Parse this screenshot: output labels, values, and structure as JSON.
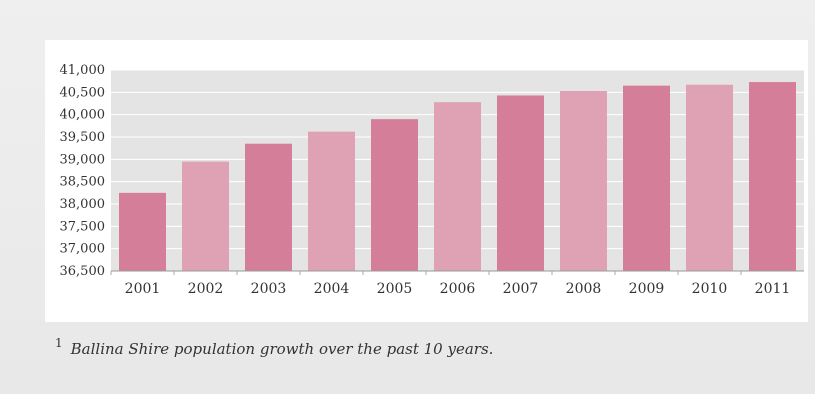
{
  "chart_data": {
    "type": "bar",
    "categories": [
      "2001",
      "2002",
      "2003",
      "2004",
      "2005",
      "2006",
      "2007",
      "2008",
      "2009",
      "2010",
      "2011"
    ],
    "values": [
      38250,
      38950,
      39350,
      39620,
      39900,
      40280,
      40430,
      40530,
      40650,
      40670,
      40730
    ],
    "title": "",
    "xlabel": "",
    "ylabel": "",
    "ylim": [
      36500,
      41000
    ],
    "yticks": [
      36500,
      37000,
      37500,
      38000,
      38500,
      39000,
      39500,
      40000,
      40500,
      41000
    ],
    "ytick_labels": [
      "36,500",
      "37,000",
      "37,500",
      "38,000",
      "38,500",
      "39,000",
      "39,500",
      "40,000",
      "40,500",
      "41,000"
    ],
    "grid": true,
    "colors": {
      "bar_dark": "#d47e9a",
      "bar_light": "#dea2b4",
      "plot_bg": "#e4e4e4",
      "grid": "#ffffff"
    }
  },
  "caption": {
    "number": "1",
    "text": "Ballina Shire population growth over the past 10 years."
  }
}
